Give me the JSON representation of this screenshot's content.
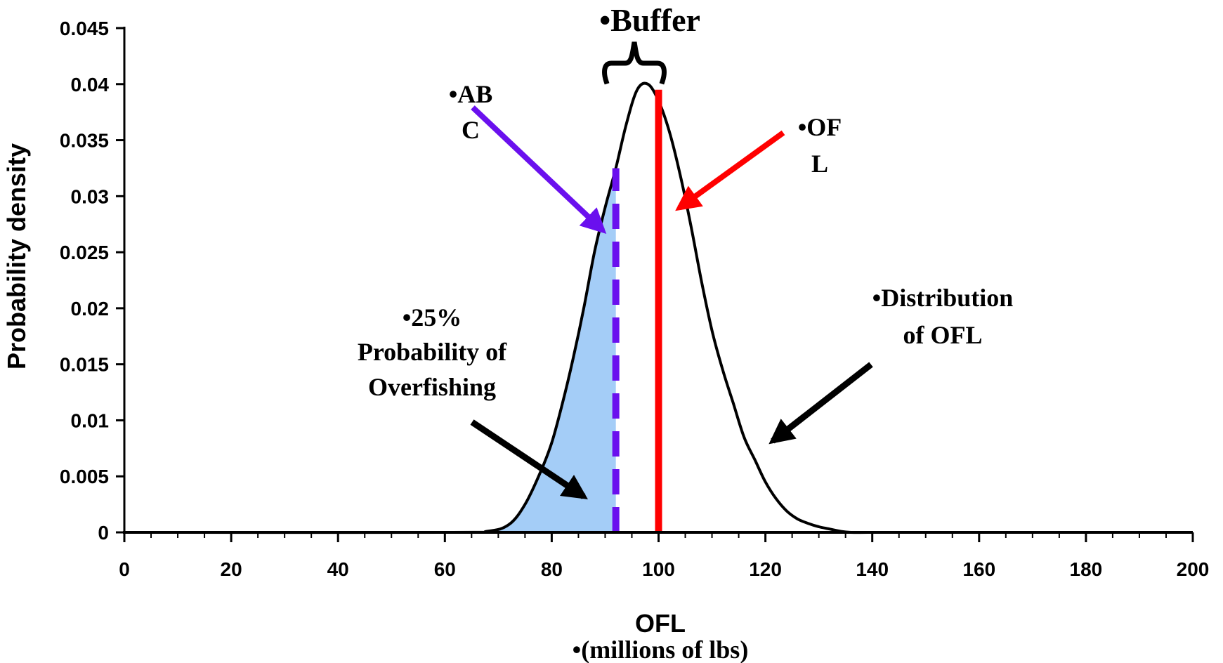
{
  "chart_data": {
    "type": "area",
    "title": "",
    "xlabel": "OFL",
    "xlabel_sub": "•(millions of lbs)",
    "ylabel": "Probability density",
    "xlim": [
      0,
      200
    ],
    "ylim": [
      0,
      0.045
    ],
    "x_ticks": [
      0,
      20,
      40,
      60,
      80,
      100,
      120,
      140,
      160,
      180,
      200
    ],
    "x_tick_labels": [
      "0",
      "20",
      "40",
      "60",
      "80",
      "100",
      "120",
      "140",
      "160",
      "180",
      "200"
    ],
    "y_ticks": [
      0,
      0.005,
      0.01,
      0.015,
      0.02,
      0.025,
      0.03,
      0.035,
      0.04,
      0.045
    ],
    "y_tick_labels": [
      "0",
      "0.005",
      "0.01",
      "0.015",
      "0.02",
      "0.025",
      "0.03",
      "0.035",
      "0.04",
      "0.045"
    ],
    "grid": false,
    "legend": "none",
    "series": [
      {
        "x": [
          0,
          60,
          68,
          72,
          75,
          78,
          80,
          82,
          84,
          86,
          88,
          90,
          92,
          94,
          96,
          98,
          100,
          102,
          104,
          106,
          108,
          110,
          112,
          114,
          116,
          118,
          120,
          122,
          124,
          126,
          128,
          130,
          132,
          134,
          136,
          140
        ],
        "y": [
          0,
          0,
          0.0001,
          0.0007,
          0.0025,
          0.0055,
          0.008,
          0.0115,
          0.0155,
          0.02,
          0.025,
          0.029,
          0.0325,
          0.0365,
          0.0395,
          0.04,
          0.0385,
          0.0358,
          0.032,
          0.0275,
          0.0225,
          0.018,
          0.0145,
          0.0115,
          0.0085,
          0.0065,
          0.0045,
          0.003,
          0.0019,
          0.0012,
          0.0008,
          0.0005,
          0.0003,
          0.0001,
          0,
          0
        ]
      }
    ],
    "shaded_region": {
      "x_from": 0,
      "x_to": 92,
      "color": "#a4cdf7"
    },
    "reference_lines": [
      {
        "label": "ABC",
        "x": 92,
        "style": "dashed",
        "color": "#6a10ee"
      },
      {
        "label": "OFL",
        "x": 100,
        "style": "solid",
        "color": "#ff0000"
      }
    ],
    "annotations": {
      "buffer": "•Buffer",
      "abc_line1": "•AB",
      "abc_line2": "C",
      "ofl_line1": "•OF",
      "ofl_line2": "L",
      "prob_line1": "•25%",
      "prob_line2": "Probability of",
      "prob_line3": "Overfishing",
      "dist_line1": "•Distribution",
      "dist_line2": "of OFL"
    },
    "colors": {
      "curve": "#000000",
      "shade": "#a4cdf7",
      "abc": "#6a10ee",
      "ofl": "#ff0000",
      "arrow_dark": "#000000"
    }
  }
}
